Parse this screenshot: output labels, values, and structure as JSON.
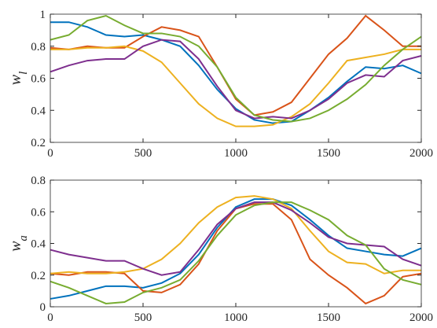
{
  "chart_data": [
    {
      "type": "line",
      "ylabel": "w",
      "ylabel_sub": "l",
      "x": [
        0,
        100,
        200,
        300,
        400,
        500,
        600,
        700,
        800,
        900,
        1000,
        1100,
        1200,
        1300,
        1400,
        1500,
        1600,
        1700,
        1800,
        1900,
        2000
      ],
      "xlim": [
        0,
        2000
      ],
      "xticks": [
        0,
        500,
        1000,
        1500,
        2000
      ],
      "ylim": [
        0.2,
        1
      ],
      "yticks": [
        0.2,
        0.4,
        0.6,
        0.8,
        1
      ],
      "series": [
        {
          "color": "#0072BD",
          "values": [
            0.95,
            0.95,
            0.92,
            0.87,
            0.86,
            0.87,
            0.84,
            0.8,
            0.68,
            0.53,
            0.41,
            0.34,
            0.32,
            0.33,
            0.4,
            0.48,
            0.58,
            0.67,
            0.66,
            0.68,
            0.63
          ]
        },
        {
          "color": "#D95319",
          "values": [
            0.79,
            0.78,
            0.8,
            0.79,
            0.79,
            0.86,
            0.92,
            0.9,
            0.86,
            0.67,
            0.47,
            0.37,
            0.39,
            0.45,
            0.6,
            0.75,
            0.85,
            0.99,
            0.9,
            0.8,
            0.8
          ]
        },
        {
          "color": "#EDB120",
          "values": [
            0.78,
            0.78,
            0.79,
            0.79,
            0.8,
            0.77,
            0.7,
            0.57,
            0.44,
            0.35,
            0.3,
            0.3,
            0.31,
            0.36,
            0.44,
            0.57,
            0.71,
            0.73,
            0.75,
            0.78,
            0.78
          ]
        },
        {
          "color": "#7E2F8E",
          "values": [
            0.64,
            0.68,
            0.71,
            0.72,
            0.72,
            0.8,
            0.84,
            0.83,
            0.72,
            0.55,
            0.4,
            0.35,
            0.36,
            0.35,
            0.4,
            0.47,
            0.57,
            0.62,
            0.61,
            0.71,
            0.74
          ]
        },
        {
          "color": "#77AC30",
          "values": [
            0.84,
            0.87,
            0.96,
            0.99,
            0.93,
            0.88,
            0.88,
            0.86,
            0.8,
            0.67,
            0.48,
            0.37,
            0.34,
            0.33,
            0.35,
            0.4,
            0.47,
            0.56,
            0.68,
            0.78,
            0.86
          ]
        }
      ]
    },
    {
      "type": "line",
      "ylabel": "w",
      "ylabel_sub": "a",
      "x": [
        0,
        100,
        200,
        300,
        400,
        500,
        600,
        700,
        800,
        900,
        1000,
        1100,
        1200,
        1300,
        1400,
        1500,
        1600,
        1700,
        1800,
        1900,
        2000
      ],
      "xlim": [
        0,
        2000
      ],
      "xticks": [
        0,
        500,
        1000,
        1500,
        2000
      ],
      "ylim": [
        0,
        0.8
      ],
      "yticks": [
        0,
        0.2,
        0.4,
        0.6,
        0.8
      ],
      "series": [
        {
          "color": "#0072BD",
          "values": [
            0.05,
            0.07,
            0.1,
            0.13,
            0.13,
            0.12,
            0.15,
            0.21,
            0.33,
            0.5,
            0.63,
            0.68,
            0.68,
            0.64,
            0.55,
            0.45,
            0.37,
            0.35,
            0.33,
            0.32,
            0.37
          ]
        },
        {
          "color": "#D95319",
          "values": [
            0.21,
            0.2,
            0.22,
            0.22,
            0.21,
            0.1,
            0.09,
            0.14,
            0.27,
            0.48,
            0.62,
            0.65,
            0.65,
            0.55,
            0.3,
            0.2,
            0.12,
            0.02,
            0.07,
            0.19,
            0.21
          ]
        },
        {
          "color": "#EDB120",
          "values": [
            0.21,
            0.22,
            0.21,
            0.21,
            0.22,
            0.24,
            0.3,
            0.4,
            0.53,
            0.63,
            0.69,
            0.7,
            0.68,
            0.62,
            0.48,
            0.35,
            0.28,
            0.27,
            0.21,
            0.23,
            0.23
          ]
        },
        {
          "color": "#7E2F8E",
          "values": [
            0.36,
            0.33,
            0.31,
            0.29,
            0.29,
            0.24,
            0.2,
            0.22,
            0.36,
            0.52,
            0.62,
            0.66,
            0.66,
            0.61,
            0.53,
            0.44,
            0.4,
            0.39,
            0.38,
            0.3,
            0.26
          ]
        },
        {
          "color": "#77AC30",
          "values": [
            0.16,
            0.12,
            0.07,
            0.02,
            0.03,
            0.09,
            0.12,
            0.17,
            0.29,
            0.45,
            0.58,
            0.64,
            0.66,
            0.66,
            0.61,
            0.55,
            0.45,
            0.39,
            0.24,
            0.17,
            0.14
          ]
        }
      ]
    }
  ]
}
